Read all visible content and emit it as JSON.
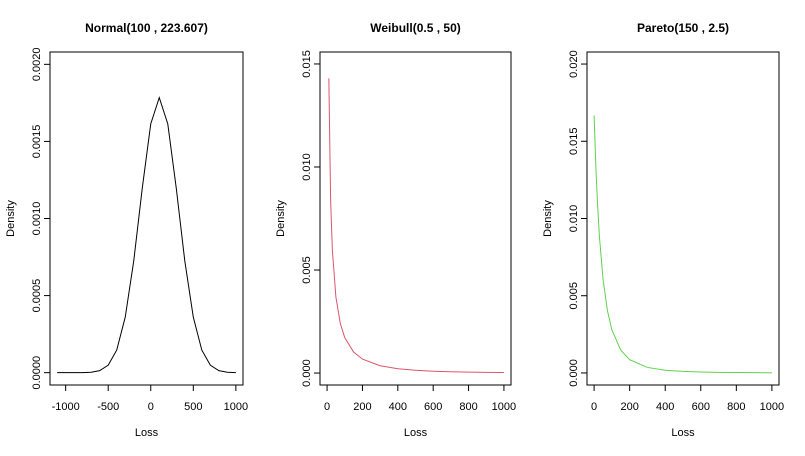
{
  "chart_data": [
    {
      "type": "line",
      "title": "Normal(100 , 223.607)",
      "x_label": "Loss",
      "y_label": "Density",
      "color": "#000000",
      "x": [
        -1100,
        -1000,
        -900,
        -800,
        -700,
        -600,
        -500,
        -400,
        -300,
        -200,
        -100,
        0,
        100,
        200,
        300,
        400,
        500,
        600,
        700,
        800,
        900,
        1000
      ],
      "values": [
        0,
        0,
        1e-07,
        5e-07,
        3e-06,
        1.33e-05,
        4.88e-05,
        0.0001465,
        0.00036,
        0.000725,
        0.001196,
        0.001614,
        0.001784,
        0.001614,
        0.001196,
        0.000725,
        0.00036,
        0.0001465,
        4.88e-05,
        1.33e-05,
        3e-06,
        5e-07
      ],
      "xlim": [
        -1184,
        1084
      ],
      "ylim": [
        -8e-05,
        0.00208
      ],
      "xticks": [
        -1000,
        -500,
        0,
        500,
        1000
      ],
      "yticks": [
        {
          "value": 0,
          "label": "0.0000"
        },
        {
          "value": 0.0005,
          "label": "0.0005"
        },
        {
          "value": 0.001,
          "label": "0.0010"
        },
        {
          "value": 0.0015,
          "label": "0.0015"
        },
        {
          "value": 0.002,
          "label": "0.0020"
        }
      ]
    },
    {
      "type": "line",
      "title": "Weibull(0.5 , 50)",
      "x_label": "Loss",
      "y_label": "Density",
      "color": "#DF536B",
      "x": [
        10,
        20,
        30,
        50,
        75,
        100,
        150,
        200,
        300,
        400,
        500,
        600,
        700,
        800,
        900,
        1000
      ],
      "values": [
        0.0143,
        0.0084,
        0.00595,
        0.00368,
        0.0024,
        0.00172,
        0.00102,
        0.000677,
        0.000353,
        0.000209,
        0.000134,
        9.03e-05,
        6.34e-05,
        4.58e-05,
        3.38e-05,
        2.55e-05
      ],
      "xlim": [
        -40,
        1040
      ],
      "ylim": [
        -0.00058,
        0.01558
      ],
      "xticks": [
        0,
        200,
        400,
        600,
        800,
        1000
      ],
      "yticks": [
        {
          "value": 0,
          "label": "0.000"
        },
        {
          "value": 0.005,
          "label": "0.005"
        },
        {
          "value": 0.01,
          "label": "0.010"
        },
        {
          "value": 0.015,
          "label": "0.015"
        }
      ]
    },
    {
      "type": "line",
      "title": "Pareto(150 , 2.5)",
      "x_label": "Loss",
      "y_label": "Density",
      "color": "#61D04F",
      "x": [
        0,
        10,
        20,
        30,
        50,
        75,
        100,
        150,
        200,
        300,
        400,
        500,
        600,
        700,
        800,
        900,
        1000
      ],
      "values": [
        0.01667,
        0.0133,
        0.01076,
        0.00881,
        0.00609,
        0.00403,
        0.00279,
        0.00147,
        0.000859,
        0.000356,
        0.000177,
        9.85e-05,
        5.96e-05,
        3.85e-05,
        2.61e-05,
        1.84e-05,
        1.34e-05
      ],
      "xlim": [
        -40,
        1040
      ],
      "ylim": [
        -0.00078,
        0.02078
      ],
      "xticks": [
        0,
        200,
        400,
        600,
        800,
        1000
      ],
      "yticks": [
        {
          "value": 0,
          "label": "0.000"
        },
        {
          "value": 0.005,
          "label": "0.005"
        },
        {
          "value": 0.01,
          "label": "0.010"
        },
        {
          "value": 0.015,
          "label": "0.015"
        },
        {
          "value": 0.02,
          "label": "0.020"
        }
      ]
    }
  ]
}
